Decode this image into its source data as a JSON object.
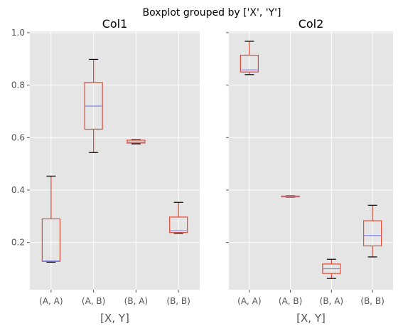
{
  "chart_data": {
    "type": "boxplot",
    "suptitle": "Boxplot grouped by ['X', 'Y']",
    "categories": [
      "(A, A)",
      "(A, B)",
      "(B, A)",
      "(B, B)"
    ],
    "ylim": [
      0.02,
      1.005
    ],
    "yticks": [
      0.2,
      0.4,
      0.6,
      0.8,
      1.0
    ],
    "ytick_labels": [
      "0.2",
      "0.4",
      "0.6",
      "0.8",
      "1.0"
    ],
    "grid": true,
    "sharey": true,
    "colors": {
      "background": "#e5e5e5",
      "grid": "#ffffff",
      "box": "#e24a33",
      "median": "#8888dd",
      "cap": "#000000",
      "tick_text": "#555555"
    },
    "panels": [
      {
        "title": "Col1",
        "xlabel": "[X, Y]",
        "boxes": [
          {
            "category": "(A, A)",
            "whislo": 0.125,
            "q1": 0.128,
            "median": 0.13,
            "q3": 0.29,
            "whishi": 0.453
          },
          {
            "category": "(A, B)",
            "whislo": 0.543,
            "q1": 0.632,
            "median": 0.72,
            "q3": 0.81,
            "whishi": 0.898
          },
          {
            "category": "(B, A)",
            "whislo": 0.576,
            "q1": 0.579,
            "median": 0.583,
            "q3": 0.59,
            "whishi": 0.592
          },
          {
            "category": "(B, B)",
            "whislo": 0.235,
            "q1": 0.238,
            "median": 0.245,
            "q3": 0.297,
            "whishi": 0.353
          }
        ]
      },
      {
        "title": "Col2",
        "xlabel": "[X, Y]",
        "boxes": [
          {
            "category": "(A, A)",
            "whislo": 0.84,
            "q1": 0.85,
            "median": 0.858,
            "q3": 0.914,
            "whishi": 0.967
          },
          {
            "category": "(A, B)",
            "whislo": 0.373,
            "q1": 0.374,
            "median": 0.376,
            "q3": 0.377,
            "whishi": 0.378
          },
          {
            "category": "(B, A)",
            "whislo": 0.063,
            "q1": 0.082,
            "median": 0.1,
            "q3": 0.118,
            "whishi": 0.136
          },
          {
            "category": "(B, B)",
            "whislo": 0.145,
            "q1": 0.187,
            "median": 0.227,
            "q3": 0.283,
            "whishi": 0.342
          }
        ]
      }
    ]
  }
}
